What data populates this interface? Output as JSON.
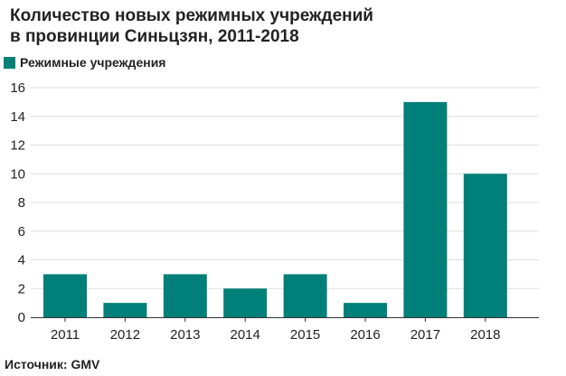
{
  "title_line1": "Количество новых режимных учреждений",
  "title_line2": "в провинции Синьцзян, 2011-2018",
  "source": "Источник: GMV",
  "chart_data": {
    "type": "bar",
    "title": "Количество новых режимных учреждений в провинции Синьцзян, 2011-2018",
    "categories": [
      "2011",
      "2012",
      "2013",
      "2014",
      "2015",
      "2016",
      "2017",
      "2018"
    ],
    "series": [
      {
        "name": "Режимные учреждения",
        "values": [
          3,
          1,
          3,
          2,
          3,
          1,
          15,
          10
        ],
        "color": "#008078"
      }
    ],
    "ylim": [
      0,
      16
    ],
    "yticks": [
      0,
      2,
      4,
      6,
      8,
      10,
      12,
      14,
      16
    ],
    "grid": true,
    "legend_position": "top-left"
  }
}
